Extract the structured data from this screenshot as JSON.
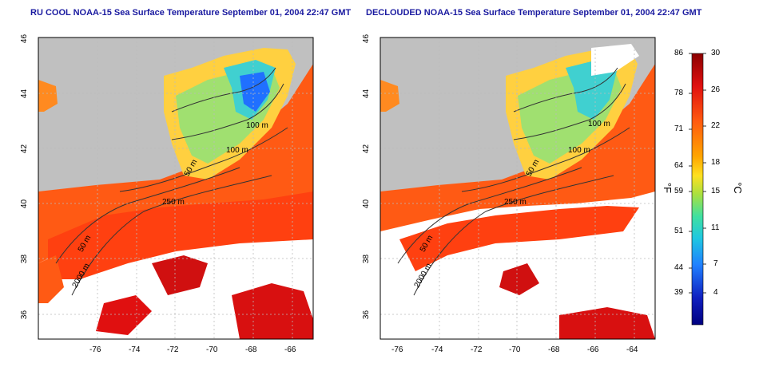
{
  "panels": [
    {
      "id": "left",
      "title": "RU COOL NOAA-15 Sea Surface Temperature September 01, 2004 22:47 GMT"
    },
    {
      "id": "right",
      "title": "DECLOUDED NOAA-15 Sea Surface Temperature September 01, 2004 22:47 GMT"
    }
  ],
  "map_axes": {
    "x_ticks": [
      "-76",
      "-74",
      "-72",
      "-70",
      "-68",
      "-66",
      "-64"
    ],
    "y_ticks": [
      "46",
      "44",
      "42",
      "40",
      "38",
      "36"
    ]
  },
  "contours": {
    "left": [
      "100 m",
      "100 m",
      "50 m",
      "250 m",
      "50 m",
      "2000 m"
    ],
    "right": [
      "100 m",
      "100 m",
      "50 m",
      "250 m",
      "50 m",
      "2000 m"
    ]
  },
  "colorbar": {
    "f_label": "°F",
    "c_label": "°C",
    "f_ticks": [
      "86",
      "78",
      "71",
      "64",
      "59",
      "51",
      "44",
      "39"
    ],
    "c_ticks": [
      "30",
      "26",
      "22",
      "18",
      "15",
      "11",
      "7",
      "4"
    ],
    "colors": [
      "#8b0000",
      "#e01010",
      "#ff6a10",
      "#ffb000",
      "#ffe020",
      "#a8e040",
      "#40e0a0",
      "#20c8e0",
      "#2080ff",
      "#1020c0",
      "#000080"
    ]
  },
  "map_colors": {
    "land": "#c0c0c0",
    "cloud": "#ffffff",
    "warm": "#ff4a10",
    "hot": "#d01010",
    "mid": "#ffb030",
    "cool": "#a0e070",
    "cold": "#30a0ff",
    "contour": "#333333"
  }
}
